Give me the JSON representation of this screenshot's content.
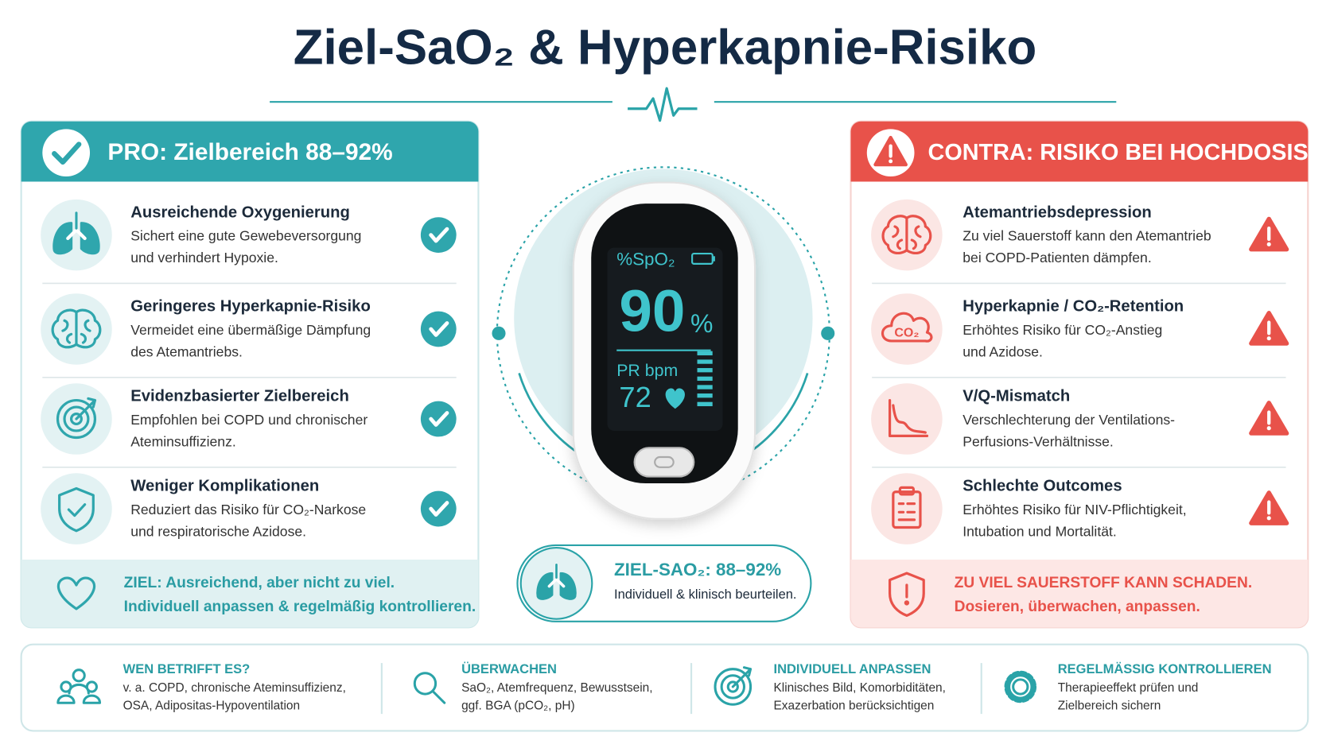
{
  "header": {
    "title": "Ziel-SaO₂ & Hyperkapnie-Risiko"
  },
  "pro": {
    "heading": "PRO: Zielbereich 88–92%",
    "items": [
      {
        "title": "Ausreichende Oxygenierung",
        "lines": [
          "Sichert eine gute Gewebeversorgung",
          "und verhindert Hypoxie."
        ]
      },
      {
        "title": "Geringeres Hyperkapnie-Risiko",
        "lines": [
          "Vermeidet eine übermäßige Dämpfung",
          "des Atemantriebs."
        ]
      },
      {
        "title": "Evidenzbasierter Zielbereich",
        "lines": [
          "Empfohlen bei COPD und chronischer",
          "Ateminsuffizienz."
        ]
      },
      {
        "title": "Weniger Komplikationen",
        "lines": [
          "Reduziert das Risiko für CO₂-Narkose",
          "und respiratorische Azidose."
        ]
      }
    ],
    "footer": [
      "ZIEL: Ausreichend, aber nicht zu viel.",
      "Individuell anpassen & regelmäßig kontrollieren."
    ]
  },
  "contra": {
    "heading": "CONTRA: RISIKO BEI HOCHDOSIS",
    "items": [
      {
        "title": "Atemantriebsdepression",
        "lines": [
          "Zu viel Sauerstoff kann den Atemantrieb",
          "bei COPD-Patienten dämpfen."
        ]
      },
      {
        "title": "Hyperkapnie / CO₂-Retention",
        "lines": [
          "Erhöhtes Risiko für CO₂-Anstieg",
          "und Azidose."
        ],
        "icon_text": "CO₂"
      },
      {
        "title": "V/Q-Mismatch",
        "lines": [
          "Verschlechterung der Ventilations-",
          "Perfusions-Verhältnisse."
        ]
      },
      {
        "title": "Schlechte Outcomes",
        "lines": [
          "Erhöhtes Risiko für NIV-Pflichtigkeit,",
          "Intubation und Mortalität."
        ]
      }
    ],
    "footer": [
      "ZU VIEL SAUERSTOFF KANN SCHADEN.",
      "Dosieren, überwachen, anpassen."
    ]
  },
  "device": {
    "spo2_label": "%SpO₂",
    "spo2": 90,
    "spo2_unit": "%",
    "pr_label": "PR bpm",
    "pr": 72
  },
  "target": {
    "title": "ZIEL-SAO₂: 88–92%",
    "text": "Individuell & klinisch beurteilen."
  },
  "bottom": [
    {
      "title": "WEN BETRIFFT ES?",
      "lines": [
        "v. a. COPD, chronische Ateminsuffizienz,",
        "OSA, Adipositas-Hypoventilation"
      ]
    },
    {
      "title": "ÜBERWACHEN",
      "lines": [
        "SaO₂, Atemfrequenz, Bewusstsein,",
        "ggf. BGA (pCO₂, pH)"
      ]
    },
    {
      "title": "INDIVIDUELL ANPASSEN",
      "lines": [
        "Klinisches Bild, Komorbiditäten,",
        "Exazerbation berücksichtigen"
      ]
    },
    {
      "title": "REGELMÄSSIG KONTROLLIEREN",
      "lines": [
        "Therapieeffekt prüfen und",
        "Zielbereich sichern"
      ]
    }
  ]
}
